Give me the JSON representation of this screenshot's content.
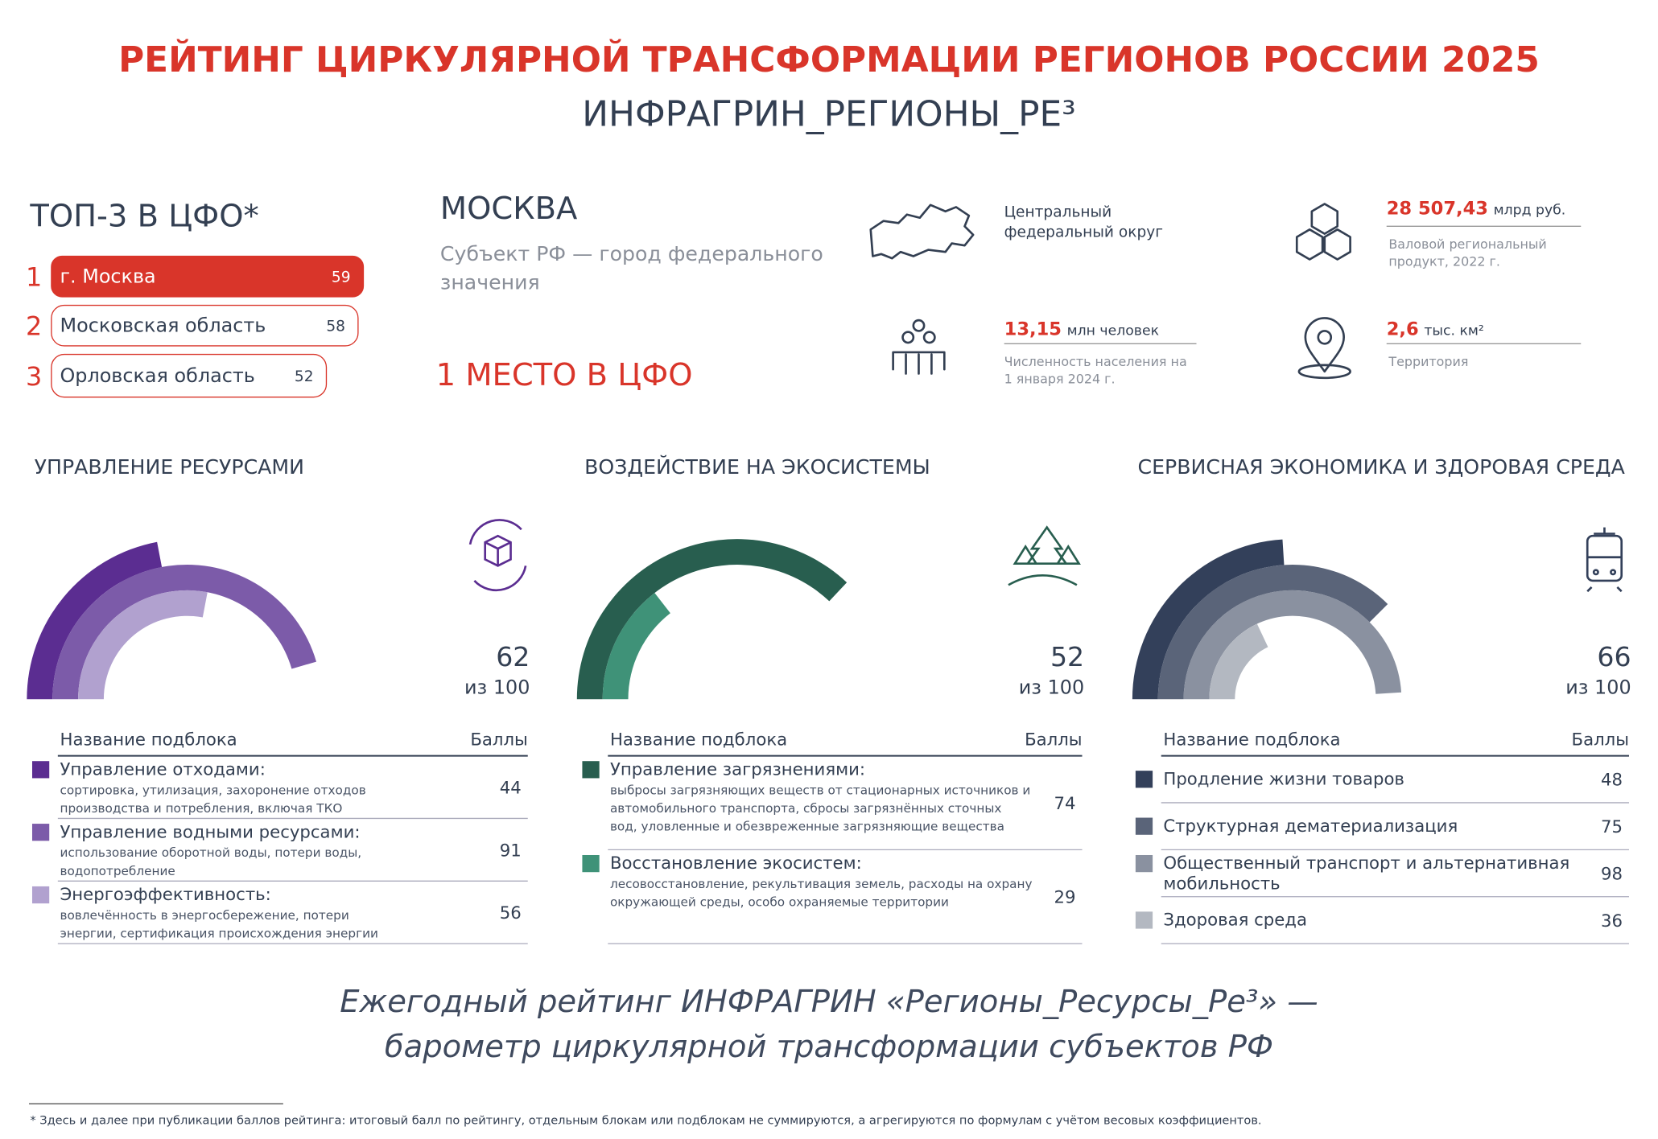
{
  "header": {
    "title": "РЕЙТИНГ ЦИРКУЛЯРНОЙ ТРАНСФОРМАЦИИ РЕГИОНОВ РОССИИ 2025",
    "subtitle": "ИНФРАГРИН_РЕГИОНЫ_РЕ³"
  },
  "top3": {
    "title": "ТОП-3 В ЦФО*",
    "rows": [
      {
        "rank": 1,
        "name": "г. Москва",
        "score": 59
      },
      {
        "rank": 2,
        "name": "Московская область",
        "score": 58
      },
      {
        "rank": 3,
        "name": "Орловская область",
        "score": 52
      }
    ]
  },
  "region": {
    "name": "МОСКВА",
    "status": [
      "Субъект РФ — город федерального",
      "значения"
    ],
    "place": "1 МЕСТО В ЦФО"
  },
  "stats": {
    "district": [
      "Центральный",
      "федеральный округ"
    ],
    "gdp": {
      "value": "28 507,43",
      "unit": "млрд руб.",
      "label": [
        "Валовой региональный",
        "продукт, 2022 г."
      ]
    },
    "population": {
      "value": "13,15",
      "unit": "млн человек",
      "label": [
        "Численность населения на",
        "1 января 2024 г."
      ]
    },
    "territory": {
      "value": "2,6",
      "unit": "тыс. км²",
      "label": [
        "Территория"
      ]
    }
  },
  "blocks": [
    {
      "title": "УПРАВЛЕНИЕ РЕСУРСАМИ",
      "score": 62,
      "score_caption": "из 100",
      "range": [
        0,
        100
      ],
      "column_name": "Название подблока",
      "column_score": "Баллы",
      "rows": [
        {
          "name": [
            "Управление отходами:"
          ],
          "description": [
            "сортировка, утилизация, захоронение отходов",
            "производства и потребления, включая ТКО"
          ],
          "score": 44,
          "color": "#5b2d91"
        },
        {
          "name": [
            "Управление водными ресурсами:"
          ],
          "description": [
            "использование оборотной воды, потери воды,",
            "водопотребление"
          ],
          "score": 91,
          "color": "#7c5ba9"
        },
        {
          "name": [
            "Энергоэффективность:"
          ],
          "description": [
            "вовлечённость в энергосбережение, потери",
            "энергии, сертификация происхождения энергии"
          ],
          "score": 56,
          "color": "#b1a1cf"
        }
      ]
    },
    {
      "title": "ВОЗДЕЙСТВИЕ НА ЭКОСИСТЕМЫ",
      "score": 52,
      "score_caption": "из 100",
      "range": [
        0,
        100
      ],
      "column_name": "Название подблока",
      "column_score": "Баллы",
      "rows": [
        {
          "name": [
            "Управление загрязнениями:"
          ],
          "description": [
            "выбросы загрязняющих веществ от стационарных источников и",
            "автомобильного транспорта, сбросы загрязнённых сточных",
            "вод, уловленные и обезвреженные загрязняющие вещества"
          ],
          "score": 74,
          "color": "#285e4f"
        },
        {
          "name": [
            "Восстановление экосистем:"
          ],
          "description": [
            "лесовосстановление, рекультивация земель, расходы на охрану",
            "окружающей среды, особо охраняемые территории"
          ],
          "score": 29,
          "color": "#3f9278"
        }
      ]
    },
    {
      "title": "СЕРВИСНАЯ ЭКОНОМИКА И ЗДОРОВАЯ СРЕДА",
      "score": 66,
      "score_caption": "из 100",
      "range": [
        0,
        100
      ],
      "column_name": "Название подблока",
      "column_score": "Баллы",
      "rows": [
        {
          "name": [
            "Продление жизни товаров"
          ],
          "score": 48,
          "color": "#33405a"
        },
        {
          "name": [
            "Структурная дематериализация"
          ],
          "score": 75,
          "color": "#5a6479"
        },
        {
          "name": [
            "Общественный транспорт и альтернативная",
            "мобильность"
          ],
          "score": 98,
          "color": "#8a91a0"
        },
        {
          "name": [
            "Здоровая среда"
          ],
          "score": 36,
          "color": "#b3b8c1"
        }
      ]
    }
  ],
  "footer": [
    "Ежегодный рейтинг ИНФРАГРИН «Регионы_Ресурсы_Ре³» —",
    "барометр циркулярной трансформации субъектов РФ"
  ],
  "footnote": "* Здесь и далее при публикации баллов рейтинга: итоговый балл по рейтингу, отдельным блокам или подблокам не суммируются, а агрегируются по формулам с учётом весовых коэффициентов."
}
